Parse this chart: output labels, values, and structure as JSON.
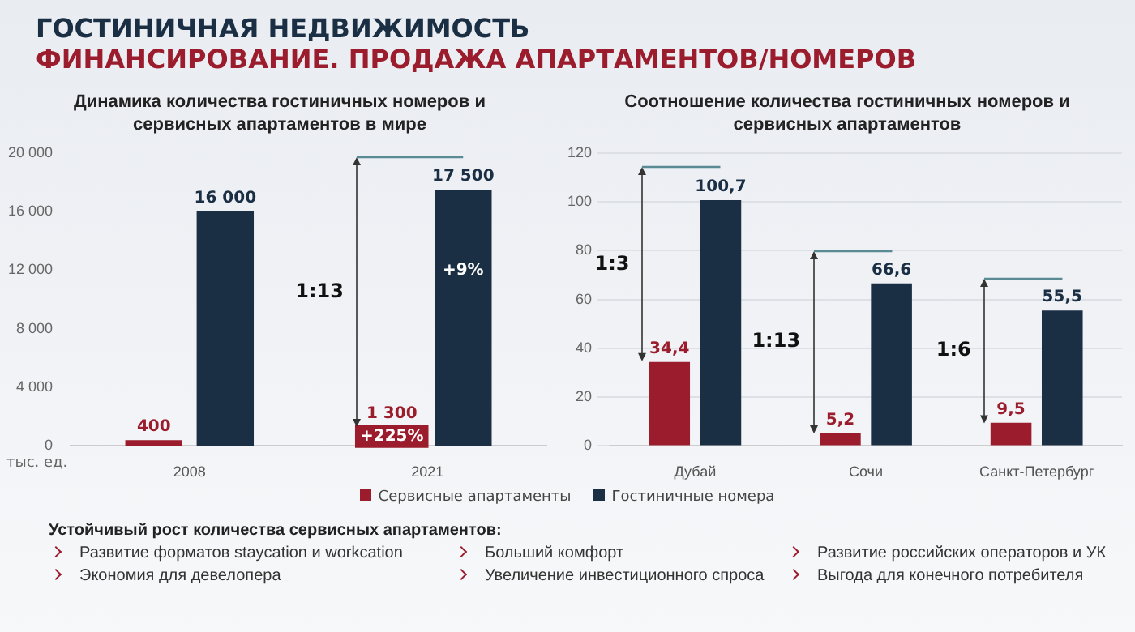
{
  "chart_data": [
    {
      "type": "other",
      "title": "ГОСТИНИЧНАЯ НЕДВИЖИМОСТЬ",
      "subtitle": "ФИНАНСИРОВАНИЕ. ПРОДАЖА АПАРТАМЕНТОВ/НОМЕРОВ"
    },
    {
      "type": "bar",
      "title": "Динамика количества гостиничных номеров и сервисных апартаментов в мире",
      "ylabel": "тыс. ед.",
      "categories": [
        "2008",
        "2021"
      ],
      "series": [
        {
          "name": "Сервисные апартаменты",
          "color": "#9b1c2c",
          "values": [
            400,
            1300
          ],
          "value_labels": [
            "400",
            "1 300"
          ]
        },
        {
          "name": "Гостиничные номера",
          "color": "#1a2e44",
          "values": [
            16000,
            17500
          ],
          "value_labels": [
            "16 000",
            "17 500"
          ]
        }
      ],
      "ylim": [
        0,
        20000
      ],
      "yticks": [
        {
          "value": 0,
          "label": "0"
        },
        {
          "value": 4000,
          "label": "4 000"
        },
        {
          "value": 8000,
          "label": "8 000"
        },
        {
          "value": 12000,
          "label": "12 000"
        },
        {
          "value": 16000,
          "label": "16 000"
        },
        {
          "value": 20000,
          "label": "20 000"
        }
      ],
      "grid": false,
      "legend": "bottom",
      "annotations": [
        {
          "text": "+225%",
          "x": "2021",
          "y": 650
        },
        {
          "text": "+9%",
          "x": "2021",
          "y": 12000
        },
        "1:13"
      ]
    },
    {
      "type": "bar",
      "title": "Соотношение количества гостиничных номеров и сервисных апартаментов",
      "categories": [
        "Дубай",
        "Сочи",
        "Санкт-Петербург"
      ],
      "series": [
        {
          "color": "#9b1c2c",
          "values": [
            34.4,
            5.2,
            9.5
          ],
          "value_labels": [
            "34,4",
            "5,2",
            "9,5"
          ]
        },
        {
          "color": "#1a2e44",
          "values": [
            100.7,
            66.6,
            55.5
          ],
          "value_labels": [
            "100,7",
            "66,6",
            "55,5"
          ]
        }
      ],
      "ylim": [
        0,
        120
      ],
      "yticks": [
        0,
        20,
        40,
        60,
        80,
        100,
        120
      ],
      "grid": "y",
      "annotations": [
        "1:3",
        "1:13",
        "1:6"
      ]
    },
    {
      "type": "other",
      "title": "Устойчивый рост количества сервисных апартаментов:",
      "annotations": [
        "Развитие форматов staycation и workcation",
        "Больший комфорт",
        "Развитие российских операторов и УК",
        "Экономия для девелопера",
        "Увеличение инвестиционного спроса",
        "Выгода для конечного потребителя"
      ]
    }
  ]
}
